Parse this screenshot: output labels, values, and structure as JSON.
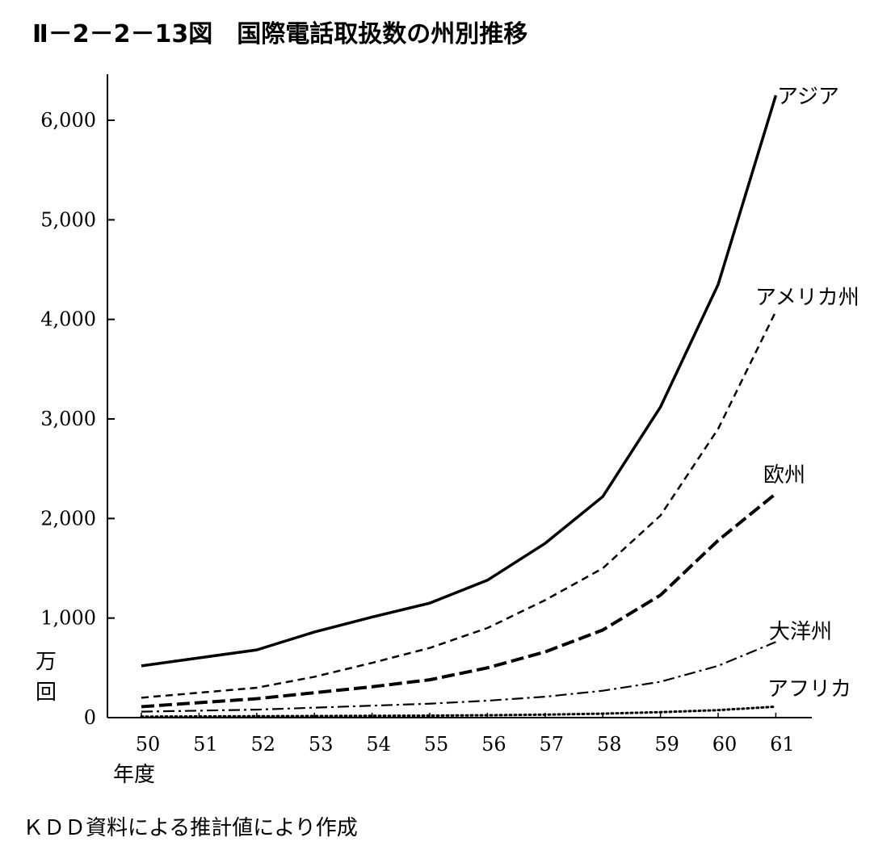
{
  "chart_data": {
    "type": "line",
    "title": "Ⅱ－2－2－13図　国際電話取扱数の州別推移",
    "x": [
      "50",
      "51",
      "52",
      "53",
      "54",
      "55",
      "56",
      "57",
      "58",
      "59",
      "60",
      "61"
    ],
    "xlabel": "年度",
    "ylabel": "万回",
    "ylim": [
      0,
      6500
    ],
    "y_ticks": [
      "0",
      "1,000",
      "2,000",
      "3,000",
      "4,000",
      "5,000",
      "6,000"
    ],
    "grid": false,
    "series": [
      {
        "name": "アジア",
        "style": "solid",
        "values": [
          520,
          600,
          680,
          860,
          1010,
          1150,
          1380,
          1750,
          2220,
          3120,
          4350,
          6250
        ]
      },
      {
        "name": "アメリカ州",
        "style": "dashed",
        "values": [
          200,
          250,
          300,
          410,
          550,
          700,
          900,
          1180,
          1500,
          2030,
          2900,
          4080
        ]
      },
      {
        "name": "欧州",
        "style": "long-dashed",
        "values": [
          110,
          150,
          190,
          250,
          310,
          380,
          500,
          660,
          880,
          1230,
          1780,
          2250
        ]
      },
      {
        "name": "大洋州",
        "style": "dash-dot",
        "values": [
          60,
          70,
          80,
          100,
          120,
          140,
          170,
          210,
          270,
          360,
          520,
          760
        ]
      },
      {
        "name": "アフリカ",
        "style": "dotted",
        "values": [
          10,
          12,
          14,
          16,
          18,
          20,
          24,
          30,
          40,
          55,
          75,
          110
        ]
      }
    ],
    "source_note": "ＫＤＤ資料による推計値により作成"
  },
  "colors": {
    "ink": "#000000",
    "background": "#ffffff"
  }
}
